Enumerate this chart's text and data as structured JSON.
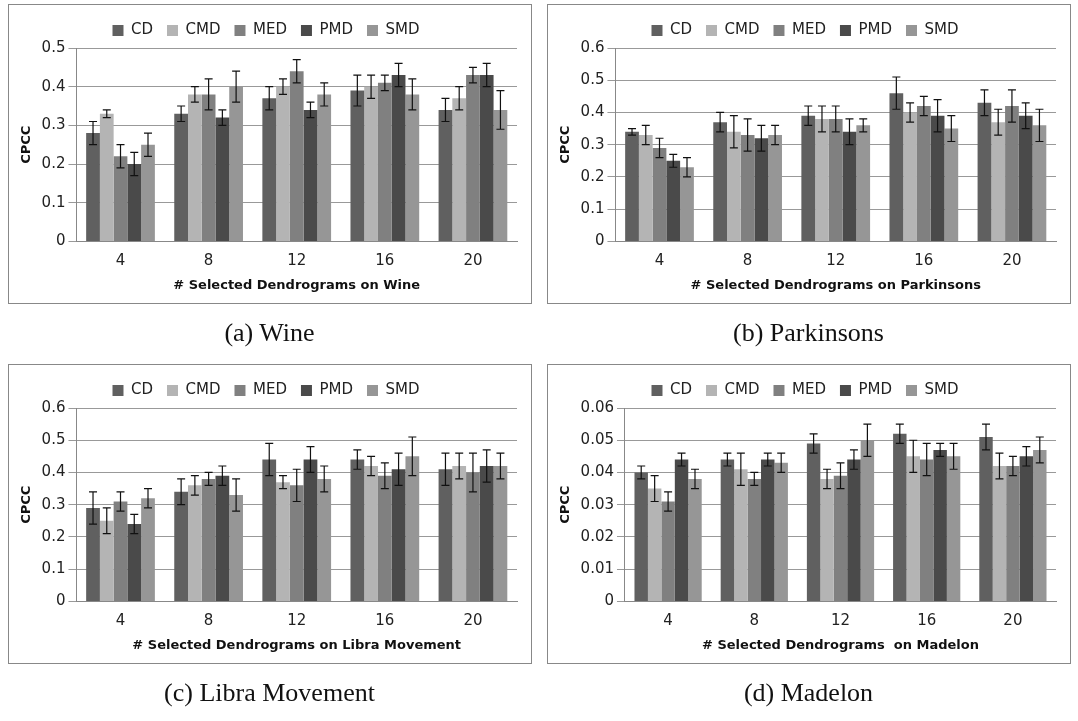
{
  "chart_data": [
    {
      "type": "bar",
      "xlabel": "# Selected Dendrograms on Wine",
      "ylabel": "CPCC",
      "categories": [
        "4",
        "8",
        "12",
        "16",
        "20"
      ],
      "ylim": [
        0,
        0.5
      ],
      "yticks": [
        0,
        0.1,
        0.2,
        0.3,
        0.4,
        0.5
      ],
      "grid": "y",
      "legend": "top",
      "annotations": [
        "(a)  Wine"
      ],
      "series": [
        {
          "name": "CD",
          "color": "#606060",
          "values": [
            0.28,
            0.33,
            0.37,
            0.39,
            0.34
          ],
          "errors": [
            0.03,
            0.02,
            0.03,
            0.04,
            0.03
          ]
        },
        {
          "name": "CMD",
          "color": "#b4b4b4",
          "values": [
            0.33,
            0.38,
            0.4,
            0.4,
            0.37
          ],
          "errors": [
            0.01,
            0.02,
            0.02,
            0.03,
            0.03
          ]
        },
        {
          "name": "MED",
          "color": "#808080",
          "values": [
            0.22,
            0.38,
            0.44,
            0.41,
            0.43
          ],
          "errors": [
            0.03,
            0.04,
            0.03,
            0.02,
            0.02
          ]
        },
        {
          "name": "PMD",
          "color": "#4a4a4a",
          "values": [
            0.2,
            0.32,
            0.34,
            0.43,
            0.43
          ],
          "errors": [
            0.03,
            0.02,
            0.02,
            0.03,
            0.03
          ]
        },
        {
          "name": "SMD",
          "color": "#969696",
          "values": [
            0.25,
            0.4,
            0.38,
            0.38,
            0.34
          ],
          "errors": [
            0.03,
            0.04,
            0.03,
            0.04,
            0.05
          ]
        }
      ]
    },
    {
      "type": "bar",
      "xlabel": "# Selected Dendrograms on Parkinsons",
      "ylabel": "CPCC",
      "categories": [
        "4",
        "8",
        "12",
        "16",
        "20"
      ],
      "ylim": [
        0,
        0.6
      ],
      "yticks": [
        0,
        0.1,
        0.2,
        0.3,
        0.4,
        0.5,
        0.6
      ],
      "grid": "y",
      "legend": "top",
      "annotations": [
        "(b)  Parkinsons"
      ],
      "series": [
        {
          "name": "CD",
          "color": "#606060",
          "values": [
            0.34,
            0.37,
            0.39,
            0.46,
            0.43
          ],
          "errors": [
            0.01,
            0.03,
            0.03,
            0.05,
            0.04
          ]
        },
        {
          "name": "CMD",
          "color": "#b4b4b4",
          "values": [
            0.33,
            0.34,
            0.38,
            0.4,
            0.37
          ],
          "errors": [
            0.03,
            0.05,
            0.04,
            0.03,
            0.04
          ]
        },
        {
          "name": "MED",
          "color": "#808080",
          "values": [
            0.29,
            0.33,
            0.38,
            0.42,
            0.42
          ],
          "errors": [
            0.03,
            0.05,
            0.04,
            0.03,
            0.05
          ]
        },
        {
          "name": "PMD",
          "color": "#4a4a4a",
          "values": [
            0.25,
            0.32,
            0.34,
            0.39,
            0.39
          ],
          "errors": [
            0.02,
            0.04,
            0.04,
            0.05,
            0.04
          ]
        },
        {
          "name": "SMD",
          "color": "#969696",
          "values": [
            0.23,
            0.33,
            0.36,
            0.35,
            0.36
          ],
          "errors": [
            0.03,
            0.03,
            0.02,
            0.04,
            0.05
          ]
        }
      ]
    },
    {
      "type": "bar",
      "xlabel": "# Selected Dendrograms on Libra Movement",
      "ylabel": "CPCC",
      "categories": [
        "4",
        "8",
        "12",
        "16",
        "20"
      ],
      "ylim": [
        0,
        0.6
      ],
      "yticks": [
        0,
        0.1,
        0.2,
        0.3,
        0.4,
        0.5,
        0.6
      ],
      "grid": "y",
      "legend": "top",
      "annotations": [
        "(c)  Libra Movement"
      ],
      "series": [
        {
          "name": "CD",
          "color": "#606060",
          "values": [
            0.29,
            0.34,
            0.44,
            0.44,
            0.41
          ],
          "errors": [
            0.05,
            0.04,
            0.05,
            0.03,
            0.05
          ]
        },
        {
          "name": "CMD",
          "color": "#b4b4b4",
          "values": [
            0.25,
            0.36,
            0.37,
            0.42,
            0.42
          ],
          "errors": [
            0.04,
            0.03,
            0.02,
            0.03,
            0.04
          ]
        },
        {
          "name": "MED",
          "color": "#808080",
          "values": [
            0.31,
            0.38,
            0.36,
            0.39,
            0.4
          ],
          "errors": [
            0.03,
            0.02,
            0.05,
            0.04,
            0.06
          ]
        },
        {
          "name": "PMD",
          "color": "#4a4a4a",
          "values": [
            0.24,
            0.39,
            0.44,
            0.41,
            0.42
          ],
          "errors": [
            0.03,
            0.03,
            0.04,
            0.05,
            0.05
          ]
        },
        {
          "name": "SMD",
          "color": "#969696",
          "values": [
            0.32,
            0.33,
            0.38,
            0.45,
            0.42
          ],
          "errors": [
            0.03,
            0.05,
            0.04,
            0.06,
            0.04
          ]
        }
      ]
    },
    {
      "type": "bar",
      "xlabel": "# Selected Dendrograms  on Madelon",
      "ylabel": "CPCC",
      "categories": [
        "4",
        "8",
        "12",
        "16",
        "20"
      ],
      "ylim": [
        0,
        0.06
      ],
      "yticks": [
        0,
        0.01,
        0.02,
        0.03,
        0.04,
        0.05,
        0.06
      ],
      "grid": "y",
      "legend": "top",
      "annotations": [
        "(d)  Madelon"
      ],
      "series": [
        {
          "name": "CD",
          "color": "#606060",
          "values": [
            0.04,
            0.044,
            0.049,
            0.052,
            0.051
          ],
          "errors": [
            0.002,
            0.002,
            0.003,
            0.003,
            0.004
          ]
        },
        {
          "name": "CMD",
          "color": "#b4b4b4",
          "values": [
            0.035,
            0.041,
            0.038,
            0.045,
            0.042
          ],
          "errors": [
            0.004,
            0.005,
            0.003,
            0.005,
            0.004
          ]
        },
        {
          "name": "MED",
          "color": "#808080",
          "values": [
            0.031,
            0.038,
            0.039,
            0.044,
            0.042
          ],
          "errors": [
            0.003,
            0.002,
            0.004,
            0.005,
            0.003
          ]
        },
        {
          "name": "PMD",
          "color": "#4a4a4a",
          "values": [
            0.044,
            0.044,
            0.044,
            0.047,
            0.045
          ],
          "errors": [
            0.002,
            0.002,
            0.003,
            0.002,
            0.003
          ]
        },
        {
          "name": "SMD",
          "color": "#969696",
          "values": [
            0.038,
            0.043,
            0.05,
            0.045,
            0.047
          ],
          "errors": [
            0.003,
            0.003,
            0.005,
            0.004,
            0.004
          ]
        }
      ]
    }
  ]
}
